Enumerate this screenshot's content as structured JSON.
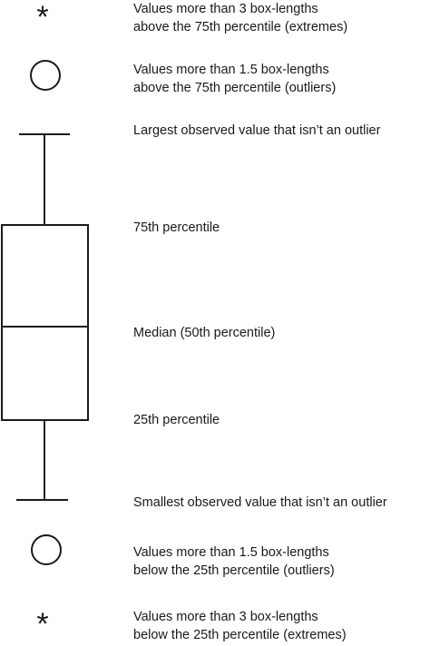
{
  "diagram": {
    "type": "box-plot-legend",
    "marker_symbols": {
      "extreme": "*",
      "outlier": "circle"
    },
    "annotations": [
      {
        "id": "extremes-above",
        "lines": [
          "Values more than 3 box-lengths",
          "above the 75th percentile (extremes)"
        ]
      },
      {
        "id": "outliers-above",
        "lines": [
          "Values more than 1.5 box-lengths",
          "above the 75th percentile (outliers)"
        ]
      },
      {
        "id": "largest-non-outlier",
        "lines": [
          "Largest observed value that isn’t an outlier"
        ]
      },
      {
        "id": "percentile-75",
        "lines": [
          "75th percentile"
        ]
      },
      {
        "id": "median",
        "lines": [
          "Median (50th percentile)"
        ]
      },
      {
        "id": "percentile-25",
        "lines": [
          "25th percentile"
        ]
      },
      {
        "id": "smallest-non-outlier",
        "lines": [
          "Smallest observed value that isn’t an outlier"
        ]
      },
      {
        "id": "outliers-below",
        "lines": [
          "Values more than 1.5 box-lengths",
          "below the 25th percentile (outliers)"
        ]
      },
      {
        "id": "extremes-below",
        "lines": [
          "Values more than 3 box-lengths",
          "below the 25th percentile (extremes)"
        ]
      }
    ],
    "colors": {
      "stroke": "#1a1a1a",
      "background": "#ffffff"
    }
  }
}
